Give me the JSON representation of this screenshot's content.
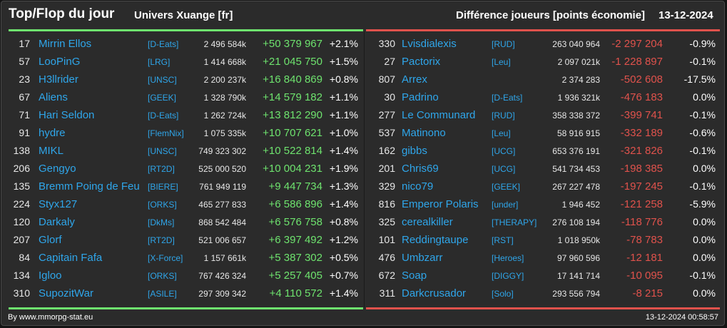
{
  "header": {
    "title": "Top/Flop du jour",
    "subtitle": "Univers Xuange [fr]",
    "metric": "Différence joueurs [points économie]",
    "date": "13-12-2024"
  },
  "colors": {
    "gain": "#6ee36e",
    "loss": "#e0524c",
    "link": "#2fa6ea",
    "background": "#2b2b2b"
  },
  "top": [
    {
      "rank": "17",
      "name": "Mirrin Ellos",
      "alliance": "[D-Eats]",
      "points": "2 496 584k",
      "diff": "+50 379 967",
      "pct": "+2.1%"
    },
    {
      "rank": "57",
      "name": "LooPinG",
      "alliance": "[LRG]",
      "points": "1 414 668k",
      "diff": "+21 045 750",
      "pct": "+1.5%"
    },
    {
      "rank": "23",
      "name": "H3llrider",
      "alliance": "[UNSC]",
      "points": "2 200 237k",
      "diff": "+16 840 869",
      "pct": "+0.8%"
    },
    {
      "rank": "67",
      "name": "Aliens",
      "alliance": "[GEEK]",
      "points": "1 328 790k",
      "diff": "+14 579 182",
      "pct": "+1.1%"
    },
    {
      "rank": "71",
      "name": "Hari Seldon",
      "alliance": "[D-Eats]",
      "points": "1 262 724k",
      "diff": "+13 812 290",
      "pct": "+1.1%"
    },
    {
      "rank": "91",
      "name": "hydre",
      "alliance": "[FlemNix]",
      "points": "1 075 335k",
      "diff": "+10 707 621",
      "pct": "+1.0%"
    },
    {
      "rank": "138",
      "name": "MIKL",
      "alliance": "[UNSC]",
      "points": "749 323 302",
      "diff": "+10 522 814",
      "pct": "+1.4%"
    },
    {
      "rank": "206",
      "name": "Gengyo",
      "alliance": "[RT2D]",
      "points": "525 000 520",
      "diff": "+10 004 231",
      "pct": "+1.9%"
    },
    {
      "rank": "135",
      "name": "Bremm Poing de Feu",
      "alliance": "[BIERE]",
      "points": "761 949 119",
      "diff": "+9 447 734",
      "pct": "+1.3%"
    },
    {
      "rank": "224",
      "name": "Styx127",
      "alliance": "[ORKS]",
      "points": "465 277 833",
      "diff": "+6 586 896",
      "pct": "+1.4%"
    },
    {
      "rank": "120",
      "name": "Darkaly",
      "alliance": "[DkMs]",
      "points": "868 542 484",
      "diff": "+6 576 758",
      "pct": "+0.8%"
    },
    {
      "rank": "207",
      "name": "Glorf",
      "alliance": "[RT2D]",
      "points": "521 006 657",
      "diff": "+6 397 492",
      "pct": "+1.2%"
    },
    {
      "rank": "84",
      "name": "Capitain Fafa",
      "alliance": "[X-Force]",
      "points": "1 157 661k",
      "diff": "+5 387 302",
      "pct": "+0.5%"
    },
    {
      "rank": "134",
      "name": "Igloo",
      "alliance": "[ORKS]",
      "points": "767 426 324",
      "diff": "+5 257 405",
      "pct": "+0.7%"
    },
    {
      "rank": "310",
      "name": "SupozitWar",
      "alliance": "[ASILE]",
      "points": "297 309 342",
      "diff": "+4 110 572",
      "pct": "+1.4%"
    }
  ],
  "flop": [
    {
      "rank": "330",
      "name": "Lvisdialexis",
      "alliance": "[RUD]",
      "points": "263 040 964",
      "diff": "-2 297 204",
      "pct": "-0.9%"
    },
    {
      "rank": "27",
      "name": "Pactorix",
      "alliance": "[Leu]",
      "points": "2 097 021k",
      "diff": "-1 228 897",
      "pct": "-0.1%"
    },
    {
      "rank": "807",
      "name": "Arrex",
      "alliance": "",
      "points": "2 374 283",
      "diff": "-502 608",
      "pct": "-17.5%"
    },
    {
      "rank": "30",
      "name": "Padrino",
      "alliance": "[D-Eats]",
      "points": "1 936 321k",
      "diff": "-476 183",
      "pct": "0.0%"
    },
    {
      "rank": "277",
      "name": "Le Communard",
      "alliance": "[RUD]",
      "points": "358 338 372",
      "diff": "-399 741",
      "pct": "-0.1%"
    },
    {
      "rank": "537",
      "name": "Matinono",
      "alliance": "[Leu]",
      "points": "58 916 915",
      "diff": "-332 189",
      "pct": "-0.6%"
    },
    {
      "rank": "162",
      "name": "gibbs",
      "alliance": "[UCG]",
      "points": "653 376 191",
      "diff": "-321 826",
      "pct": "-0.1%"
    },
    {
      "rank": "201",
      "name": "Chris69",
      "alliance": "[UCG]",
      "points": "541 734 453",
      "diff": "-198 385",
      "pct": "0.0%"
    },
    {
      "rank": "329",
      "name": "nico79",
      "alliance": "[GEEK]",
      "points": "267 227 478",
      "diff": "-197 245",
      "pct": "-0.1%"
    },
    {
      "rank": "816",
      "name": "Emperor Polaris",
      "alliance": "[under]",
      "points": "1 946 452",
      "diff": "-121 258",
      "pct": "-5.9%"
    },
    {
      "rank": "325",
      "name": "cerealkiller",
      "alliance": "[THERAPY]",
      "points": "276 108 194",
      "diff": "-118 776",
      "pct": "0.0%"
    },
    {
      "rank": "101",
      "name": "Reddingtaupe",
      "alliance": "[RST]",
      "points": "1 018 950k",
      "diff": "-78 783",
      "pct": "0.0%"
    },
    {
      "rank": "476",
      "name": "Umbzarr",
      "alliance": "[Heroes]",
      "points": "97 960 596",
      "diff": "-12 181",
      "pct": "0.0%"
    },
    {
      "rank": "672",
      "name": "Soap",
      "alliance": "[DIGGY]",
      "points": "17 141 714",
      "diff": "-10 095",
      "pct": "-0.1%"
    },
    {
      "rank": "311",
      "name": "Darkcrusador",
      "alliance": "[Solo]",
      "points": "293 556 794",
      "diff": "-8 215",
      "pct": "0.0%"
    }
  ],
  "footer": {
    "credit": "By www.mmorpg-stat.eu",
    "timestamp": "13-12-2024 00:58:57"
  }
}
